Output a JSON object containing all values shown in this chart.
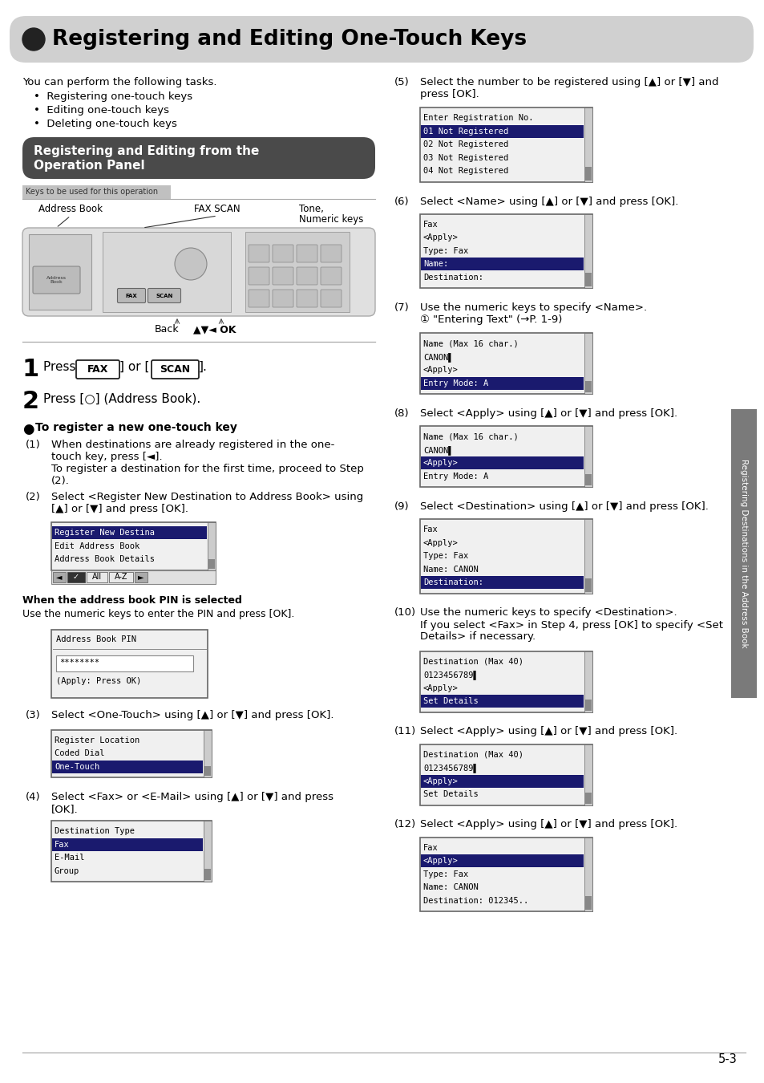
{
  "title": "Registering and Editing One-Touch Keys",
  "section_title_line1": "Registering and Editing from the",
  "section_title_line2": "Operation Panel",
  "intro": "You can perform the following tasks.",
  "bullets": [
    "Registering one-touch keys",
    "Editing one-touch keys",
    "Deleting one-touch keys"
  ],
  "keys_label": "Keys to be used for this operation",
  "addr_label": "Address Book",
  "fax_scan_label": "FAX SCAN",
  "tone_label1": "Tone,",
  "tone_label2": "Numeric keys",
  "back_label": "Back",
  "ok_label": "▲▼◄ OK",
  "step1_pre": "Press [",
  "step1_fax": "FAX",
  "step1_mid": "] or [",
  "step1_scan": "SCAN",
  "step1_post": "].",
  "step2": "Press [○] (Address Book).",
  "register_title": "To register a new one-touch key",
  "sub1_num": "(1)",
  "sub1_text1": "When destinations are already registered in the one-",
  "sub1_text2": "touch key, press [◄].",
  "sub1_text3": "To register a destination for the first time, proceed to Step",
  "sub1_text4": "(2).",
  "sub2_num": "(2)",
  "sub2_text1": "Select <Register New Destination to Address Book> using",
  "sub2_text2": "[▲] or [▼] and press [OK].",
  "screen1_lines": [
    "Register New Destina",
    "Edit Address Book",
    "Address Book Details"
  ],
  "screen1_hi": 0,
  "screen1_nav": "◄  ✓  All  A-Z  ►",
  "pin_bold": "When the address book PIN is selected",
  "pin_text": "Use the numeric keys to enter the PIN and press [OK].",
  "pin_screen_lines": [
    "Address Book PIN",
    "",
    "********",
    "",
    "(Apply: Press OK)"
  ],
  "sub3_num": "(3)",
  "sub3_text": "Select <One-Touch> using [▲] or [▼] and press [OK].",
  "screen3_lines": [
    "Register Location",
    "Coded Dial",
    "One-Touch"
  ],
  "screen3_hi": 2,
  "sub4_num": "(4)",
  "sub4_text1": "Select <Fax> or <E-Mail> using [▲] or [▼] and press",
  "sub4_text2": "[OK].",
  "screen4_lines": [
    "Destination Type",
    "Fax",
    "E-Mail",
    "Group"
  ],
  "screen4_hi": 1,
  "right_steps": [
    {
      "num": "(5)",
      "text1": "Select the number to be registered using [▲] or [▼] and",
      "text2": "press [OK].",
      "screen_lines": [
        "Enter Registration No.",
        "01 Not Registered",
        "02 Not Registered",
        "03 Not Registered",
        "04 Not Registered"
      ],
      "screen_hi": 1
    },
    {
      "num": "(6)",
      "text1": "Select <Name> using [▲] or [▼] and press [OK].",
      "text2": "",
      "screen_lines": [
        "Fax",
        "<Apply>",
        "Type: Fax",
        "Name:",
        "Destination:"
      ],
      "screen_hi": 3
    },
    {
      "num": "(7)",
      "text1": "Use the numeric keys to specify <Name>.",
      "text2": "① \"Entering Text\" (→P. 1-9)",
      "screen_lines": [
        "Name (Max 16 char.)",
        "CANON▌",
        "<Apply>",
        "Entry Mode: A"
      ],
      "screen_hi": 3
    },
    {
      "num": "(8)",
      "text1": "Select <Apply> using [▲] or [▼] and press [OK].",
      "text2": "",
      "screen_lines": [
        "Name (Max 16 char.)",
        "CANON▌",
        "<Apply>",
        "Entry Mode: A"
      ],
      "screen_hi": 2
    },
    {
      "num": "(9)",
      "text1": "Select <Destination> using [▲] or [▼] and press [OK].",
      "text2": "",
      "screen_lines": [
        "Fax",
        "<Apply>",
        "Type: Fax",
        "Name: CANON",
        "Destination:"
      ],
      "screen_hi": 4
    },
    {
      "num": "(10)",
      "text1": "Use the numeric keys to specify <Destination>.",
      "text2": "If you select <Fax> in Step 4, press [OK] to specify <Set",
      "text3": "Details> if necessary.",
      "screen_lines": [
        "Destination (Max 40)",
        "0123456789▌",
        "<Apply>",
        "Set Details"
      ],
      "screen_hi": 3
    },
    {
      "num": "(11)",
      "text1": "Select <Apply> using [▲] or [▼] and press [OK].",
      "text2": "",
      "screen_lines": [
        "Destination (Max 40)",
        "0123456789▌",
        "<Apply>",
        "Set Details"
      ],
      "screen_hi": 2
    },
    {
      "num": "(12)",
      "text1": "Select <Apply> using [▲] or [▼] and press [OK].",
      "text2": "",
      "screen_lines": [
        "Fax",
        "<Apply>",
        "Type: Fax",
        "Name: CANON",
        "Destination: 012345.."
      ],
      "screen_hi": 1
    }
  ],
  "sidebar_text": "Registering Destinations in the Address Book",
  "page_num": "5-3",
  "hi_color": "#1a1a6e",
  "hi_text": "#ffffff",
  "screen_bg": "#f0f0f0",
  "screen_border": "#666666",
  "mono_size": 7.5
}
